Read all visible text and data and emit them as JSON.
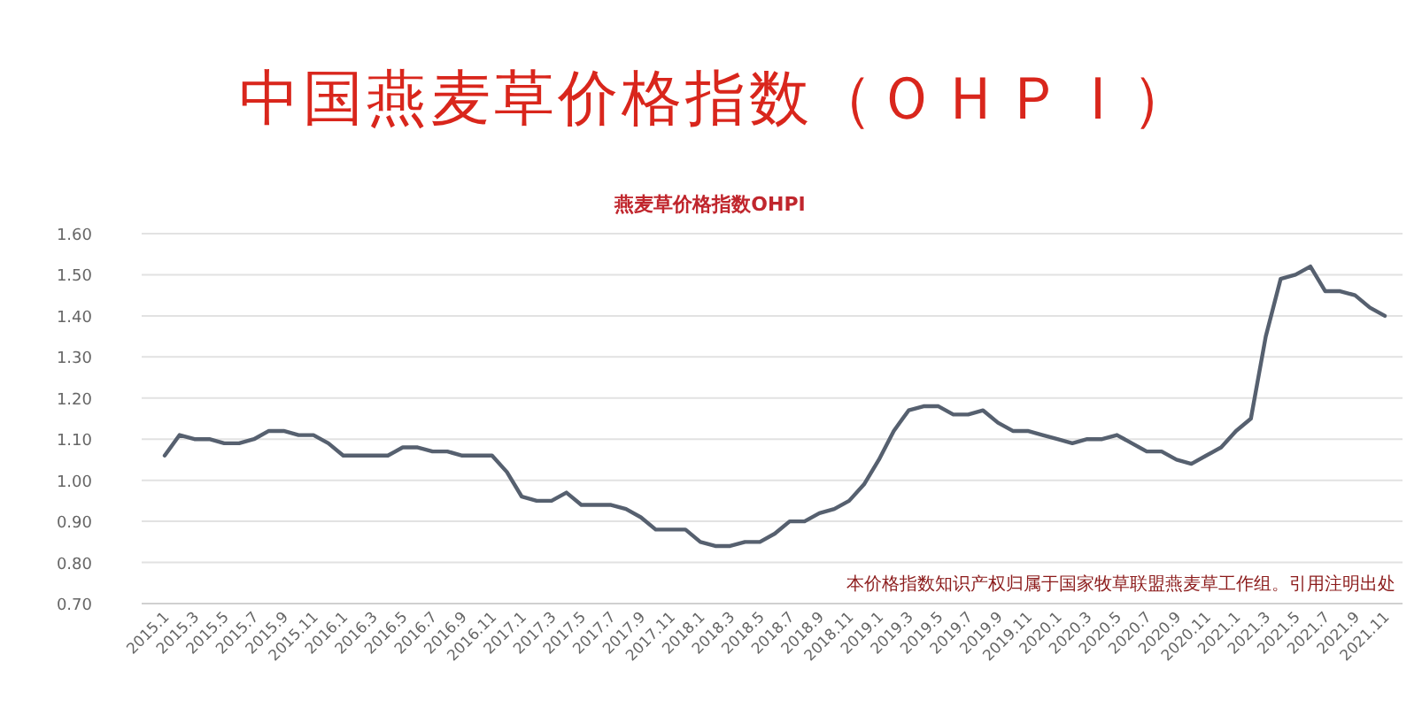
{
  "chart_data": {
    "type": "line",
    "title": "中国燕麦草价格指数（ＯＨＰＩ）",
    "subtitle": "燕麦草价格指数OHPI",
    "annotations": [
      "本价格指数知识产权归属于国家牧草联盟燕麦草工作组。引用注明出处"
    ],
    "categories": [
      "2015.1",
      null,
      "2015.3",
      null,
      "2015.5",
      null,
      "2015.7",
      null,
      "2015.9",
      null,
      "2015.11",
      null,
      "2016.1",
      null,
      "2016.3",
      null,
      "2016.5",
      null,
      "2016.7",
      null,
      "2016.9",
      null,
      "2016.11",
      null,
      "2017.1",
      null,
      "2017.3",
      null,
      "2017.5",
      null,
      "2017.7",
      null,
      "2017.9",
      null,
      "2017.11",
      null,
      "2018.1",
      null,
      "2018.3",
      null,
      "2018.5",
      null,
      "2018.7",
      null,
      "2018.9",
      null,
      "2018.11",
      null,
      "2019.1",
      null,
      "2019.3",
      null,
      "2019.5",
      null,
      "2019.7",
      null,
      "2019.9",
      null,
      "2019.11",
      null,
      "2020.1",
      null,
      "2020.3",
      null,
      "2020.5",
      null,
      "2020.7",
      null,
      "2020.9",
      null,
      "2020.11",
      null,
      "2021.1",
      null,
      "2021.3",
      null,
      "2021.5",
      null,
      "2021.7",
      null,
      "2021.9",
      null,
      "2021.11"
    ],
    "series": [
      {
        "color": "#56606f",
        "values": [
          1.06,
          1.11,
          1.1,
          1.1,
          1.09,
          1.09,
          1.1,
          1.12,
          1.12,
          1.11,
          1.11,
          1.09,
          1.06,
          1.06,
          1.06,
          1.06,
          1.08,
          1.08,
          1.07,
          1.07,
          1.06,
          1.06,
          1.06,
          1.02,
          0.96,
          0.95,
          0.95,
          0.97,
          0.94,
          0.94,
          0.94,
          0.93,
          0.91,
          0.88,
          0.88,
          0.88,
          0.85,
          0.84,
          0.84,
          0.85,
          0.85,
          0.87,
          0.9,
          0.9,
          0.92,
          0.93,
          0.95,
          0.99,
          1.05,
          1.12,
          1.17,
          1.18,
          1.18,
          1.16,
          1.16,
          1.17,
          1.14,
          1.12,
          1.12,
          1.11,
          1.1,
          1.09,
          1.1,
          1.1,
          1.11,
          1.09,
          1.07,
          1.07,
          1.05,
          1.04,
          1.06,
          1.08,
          1.12,
          1.15,
          1.35,
          1.49,
          1.5,
          1.52,
          1.46,
          1.46,
          1.45,
          1.42,
          1.4
        ]
      }
    ],
    "ylim": [
      0.7,
      1.6
    ],
    "yticks": [
      {
        "value": 0.7,
        "label": "0.70"
      },
      {
        "value": 0.8,
        "label": "0.80"
      },
      {
        "value": 0.9,
        "label": "0.90"
      },
      {
        "value": 1.0,
        "label": "1.00"
      },
      {
        "value": 1.1,
        "label": "1.10"
      },
      {
        "value": 1.2,
        "label": "1.20"
      },
      {
        "value": 1.3,
        "label": "1.30"
      },
      {
        "value": 1.4,
        "label": "1.40"
      },
      {
        "value": 1.5,
        "label": "1.50"
      },
      {
        "value": 1.6,
        "label": "1.60"
      }
    ],
    "grid": "y"
  }
}
